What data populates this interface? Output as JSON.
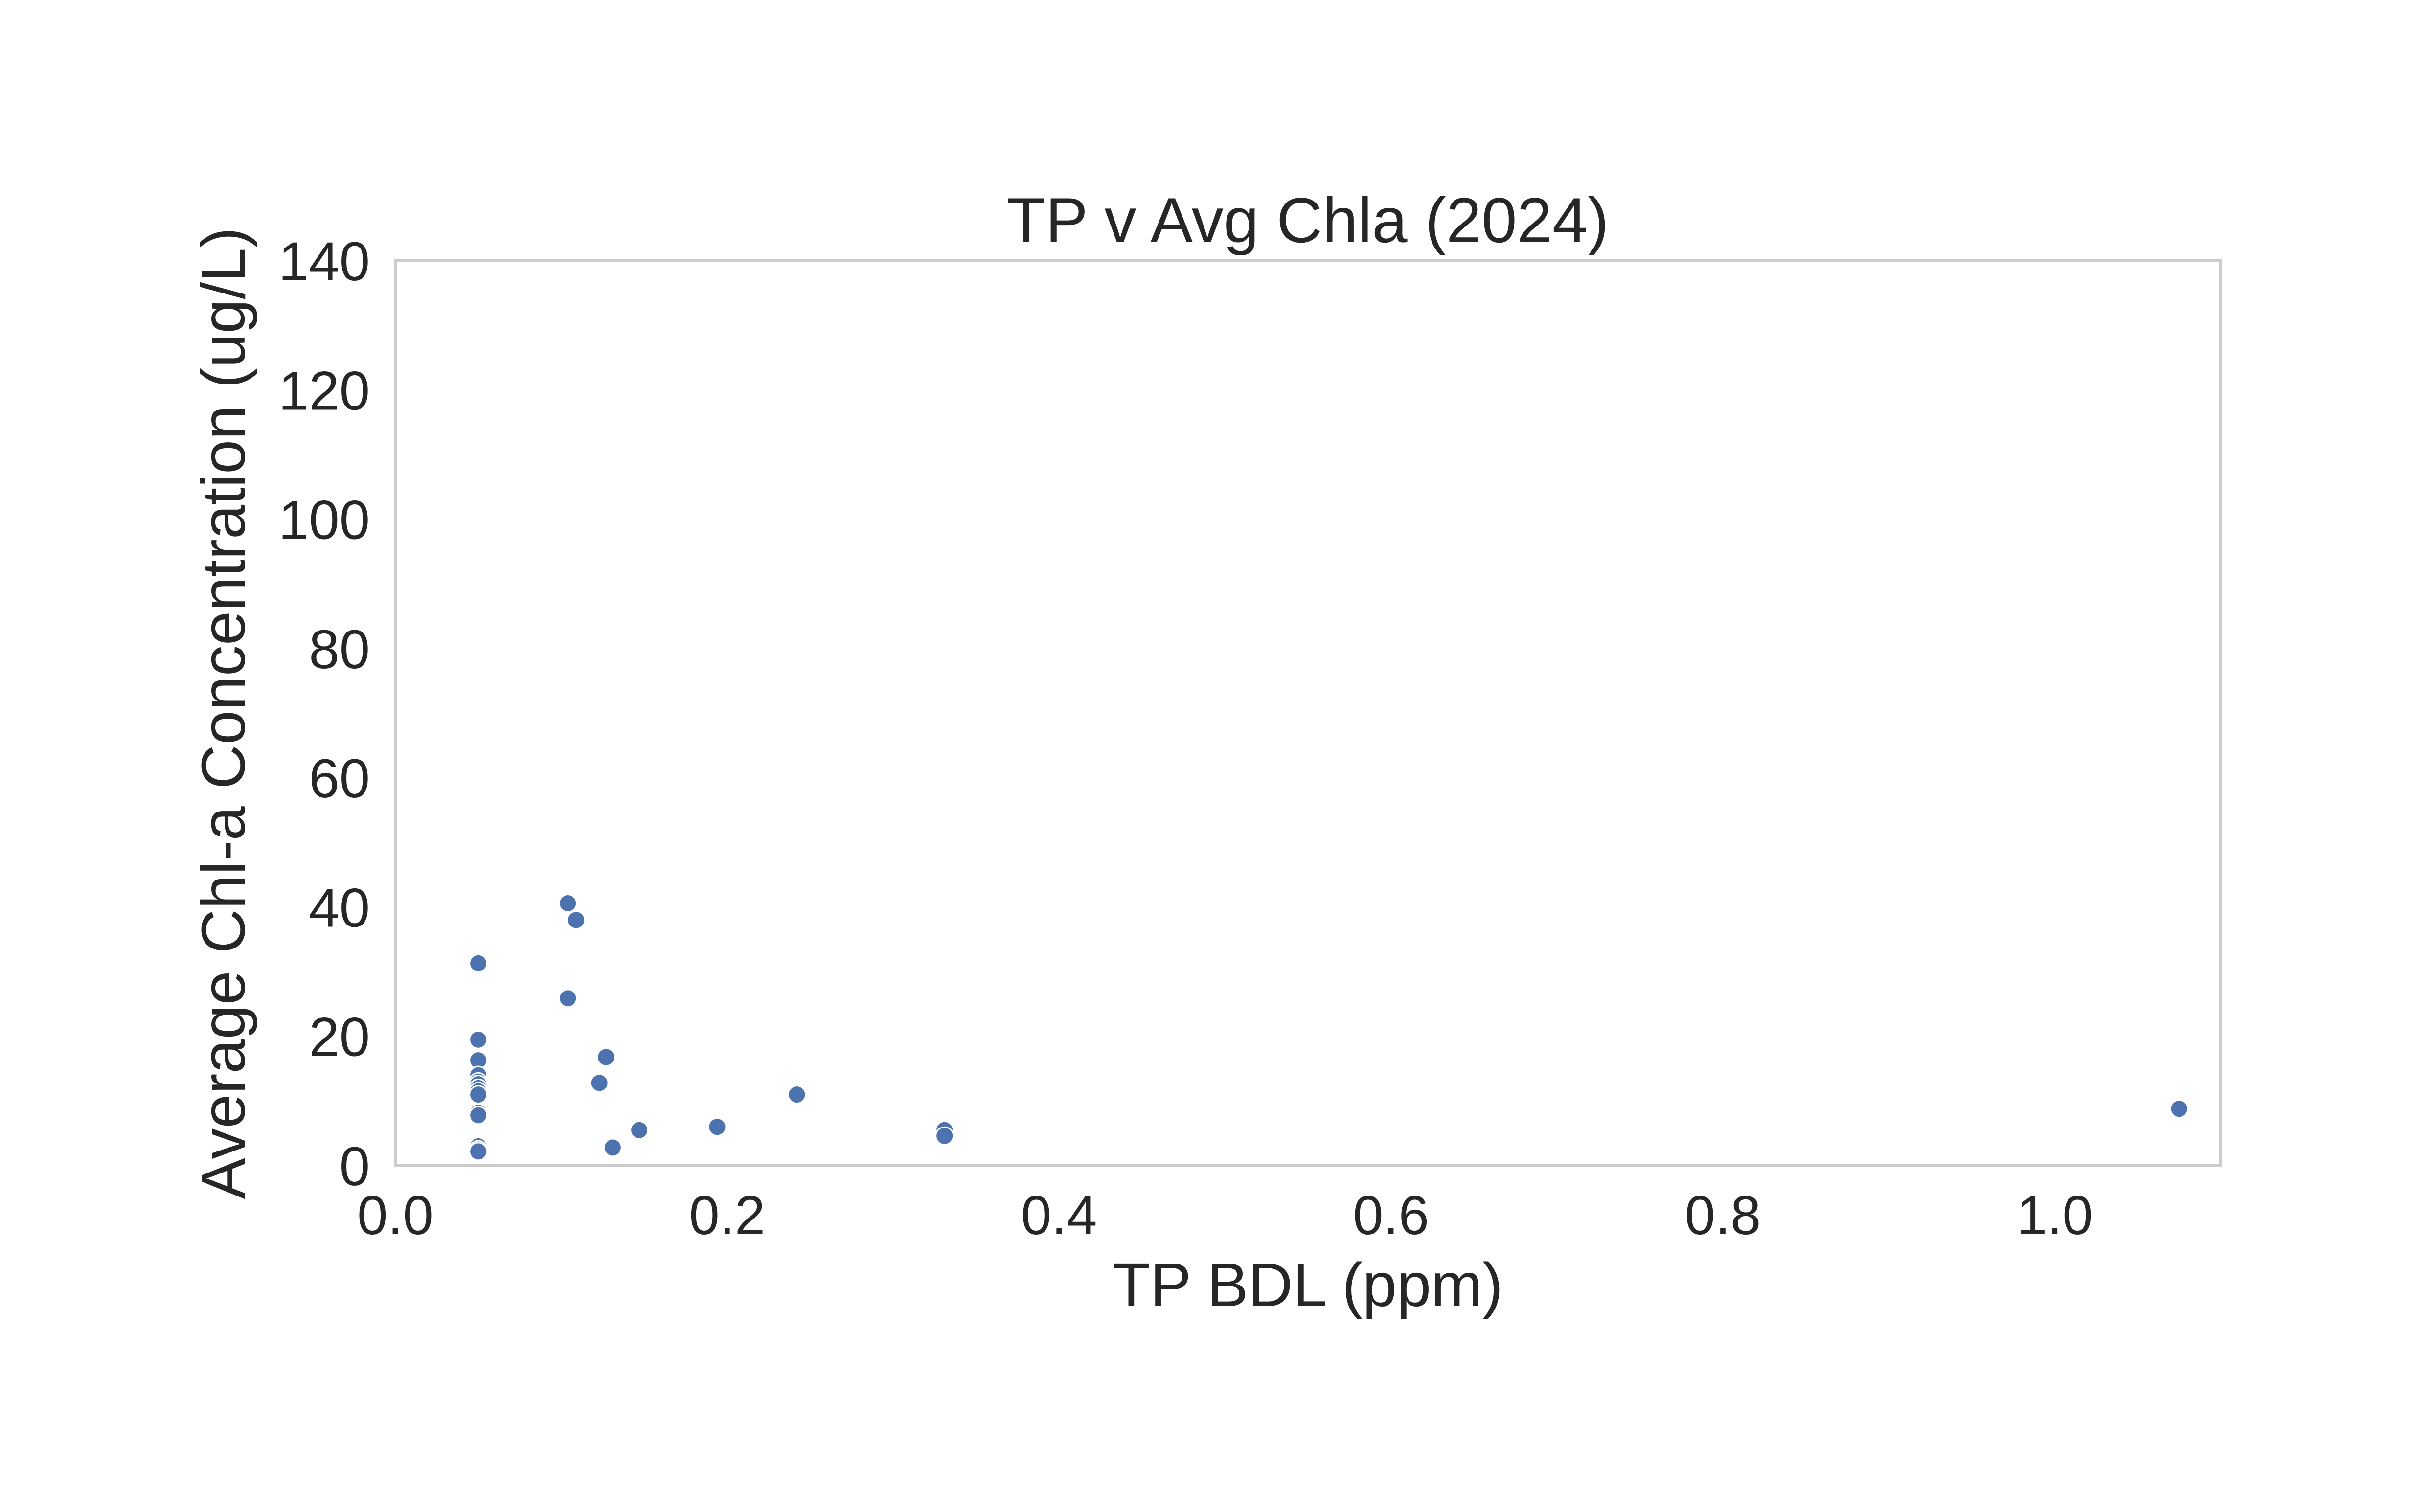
{
  "chart_data": {
    "type": "scatter",
    "title": "TP v Avg Chla (2024)",
    "xlabel": "TP BDL (ppm)",
    "ylabel": "Average Chl-a Concentration (ug/L)",
    "xlim": [
      0.0,
      1.1
    ],
    "ylim": [
      0,
      140
    ],
    "xticks": [
      0.0,
      0.2,
      0.4,
      0.6,
      0.8,
      1.0
    ],
    "xtick_labels": [
      "0.0",
      "0.2",
      "0.4",
      "0.6",
      "0.8",
      "1.0"
    ],
    "yticks": [
      0,
      20,
      40,
      60,
      80,
      100,
      120,
      140
    ],
    "ytick_labels": [
      "0",
      "20",
      "40",
      "60",
      "80",
      "100",
      "120",
      "140"
    ],
    "grid": false,
    "color": "#4c72b0",
    "series": [
      {
        "name": "TP v Avg Chla",
        "x": [
          0.05,
          0.05,
          0.05,
          0.05,
          0.05,
          0.05,
          0.05,
          0.05,
          0.05,
          0.05,
          0.05,
          0.05,
          0.05,
          0.05,
          0.104,
          0.109,
          0.104,
          0.127,
          0.123,
          0.131,
          0.147,
          0.194,
          0.242,
          0.331,
          0.331,
          1.075
        ],
        "y": [
          31.3,
          19.5,
          16.3,
          14.0,
          13.0,
          12.6,
          12.0,
          11.5,
          11.0,
          8.2,
          7.8,
          3.0,
          2.5,
          2.2,
          40.6,
          38.0,
          25.9,
          16.8,
          12.8,
          2.8,
          5.5,
          6.0,
          11.0,
          5.5,
          4.6,
          8.8
        ]
      }
    ]
  }
}
